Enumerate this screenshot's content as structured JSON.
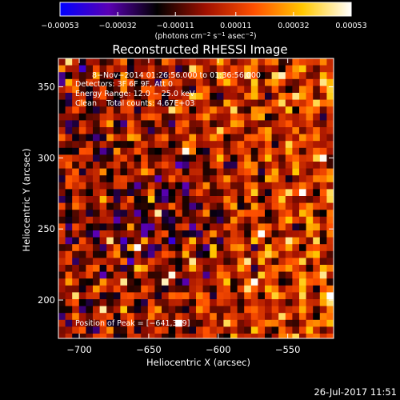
{
  "chart_data": {
    "type": "heatmap",
    "title": "Reconstructed RHESSI Image",
    "xlabel": "Heliocentric X (arcsec)",
    "ylabel": "Heliocentric Y (arcsec)",
    "xlim": [
      -715,
      -517
    ],
    "ylim": [
      173,
      370
    ],
    "x_ticks": [
      -700,
      -650,
      -600,
      -550
    ],
    "x_tick_labels": [
      "−700",
      "−650",
      "−600",
      "−550"
    ],
    "y_ticks": [
      200,
      250,
      300,
      350
    ],
    "y_tick_labels": [
      "200",
      "250",
      "300",
      "350"
    ],
    "colorbar": {
      "ticks": [
        -0.00053,
        -0.00032,
        -0.00011,
        0.00011,
        0.00032,
        0.00053
      ],
      "tick_labels": [
        "−0.00053",
        "−0.00032",
        "−0.00011",
        "0.00011",
        "0.00032",
        "0.00053"
      ],
      "unit_label_parts": [
        "(photons cm",
        "−2",
        " s",
        "−1",
        " asec",
        "−2",
        ")"
      ],
      "colors": [
        "#0000ff",
        "#5a00b4",
        "#000000",
        "#a01000",
        "#ff5000",
        "#ffc800",
        "#ffffff"
      ]
    },
    "annotations": [
      "8−Nov−2014 01:26:56.000 to 01:36:56.000",
      "Detectors: 3F 6F 9F, Att 0",
      "Energy Range: 12.0 − 25.0 keV",
      "Clean    Total counts: 4.67E+03"
    ],
    "peak_label": "Position of Peak = [−641,359]",
    "peak": [
      -641,
      359
    ],
    "grid": false
  },
  "footer": {
    "timestamp": "26-Jul-2017 11:51"
  }
}
